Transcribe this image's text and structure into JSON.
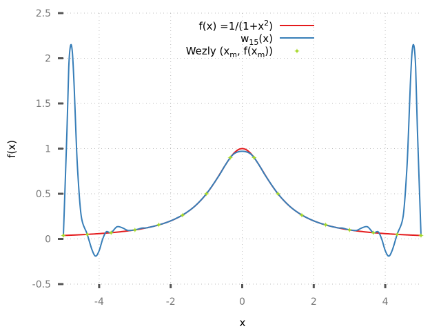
{
  "chart_data": {
    "type": "line",
    "xlabel": "x",
    "ylabel": "f(x)",
    "xlim": [
      -5,
      5
    ],
    "ylim": [
      -0.5,
      2.5
    ],
    "grid": true,
    "legend_position": "top-right",
    "x_ticks": [
      -4,
      -2,
      0,
      2,
      4
    ],
    "x_tick_labels": [
      "-4",
      "-2",
      "0",
      "2",
      "4"
    ],
    "y_ticks": [
      -0.5,
      0,
      0.5,
      1,
      1.5,
      2,
      2.5
    ],
    "y_tick_labels": [
      "-0.5",
      "0",
      "0.5",
      "1",
      "1.5",
      "2",
      "2.5"
    ],
    "series": [
      {
        "name": "f(x) =1/(1+x^2)",
        "legend_parts": {
          "pre": "f(x) =1/(1+x",
          "sup": "2",
          "post": ")"
        },
        "color": "#e41a1c",
        "kind": "line",
        "function": "1/(1+x^2)",
        "x_range": [
          -5,
          5
        ]
      },
      {
        "name": "w15(x)",
        "legend_parts": {
          "pre": "w",
          "sub": "15",
          "post": "(x)"
        },
        "color": "#377eb8",
        "kind": "line",
        "x": [
          -5,
          -4.9,
          -4.85,
          -4.8,
          -4.75,
          -4.7,
          -4.65,
          -4.6,
          -4.5,
          -4.333,
          -4.2,
          -4.1,
          -4.0,
          -3.9,
          -3.8,
          -3.667,
          -3.5,
          -3.333,
          -3.2,
          -3.0,
          -2.8,
          -2.667,
          -2.333,
          -2.0,
          -1.667,
          -1.333,
          -1.0,
          -0.667,
          -0.5,
          -0.333,
          -0.2,
          0,
          0.2,
          0.333,
          0.5,
          0.667,
          1.0,
          1.333,
          1.667,
          2.0,
          2.333,
          2.667,
          2.8,
          3.0,
          3.2,
          3.333,
          3.5,
          3.667,
          3.8,
          3.9,
          4.0,
          4.1,
          4.2,
          4.333,
          4.5,
          4.6,
          4.65,
          4.7,
          4.75,
          4.8,
          4.85,
          4.9,
          5
        ],
        "y": [
          0.038,
          1.2,
          1.9,
          2.14,
          2.07,
          1.7,
          1.18,
          0.75,
          0.25,
          0.051,
          -0.12,
          -0.19,
          -0.13,
          0.0,
          0.08,
          0.069,
          0.135,
          0.12,
          0.095,
          0.1,
          0.12,
          0.123,
          0.155,
          0.2,
          0.265,
          0.36,
          0.5,
          0.69,
          0.8,
          0.9,
          0.95,
          0.97,
          0.95,
          0.9,
          0.8,
          0.69,
          0.5,
          0.36,
          0.265,
          0.2,
          0.155,
          0.123,
          0.12,
          0.1,
          0.095,
          0.12,
          0.135,
          0.069,
          0.08,
          0.0,
          -0.13,
          -0.19,
          -0.12,
          0.051,
          0.25,
          0.75,
          1.18,
          1.7,
          2.07,
          2.14,
          1.9,
          1.2,
          0.038
        ]
      },
      {
        "name": "Wezly (xm, f(xm))",
        "legend_parts": {
          "pre": "Wezly (x",
          "sub": "m",
          "mid": ", f(x",
          "sub2": "m",
          "post": "))"
        },
        "color": "#a6d82a",
        "kind": "points",
        "x": [
          -5,
          -4.333,
          -3.667,
          -3.0,
          -2.333,
          -1.667,
          -1.0,
          -0.333,
          0.333,
          1.0,
          1.667,
          2.333,
          3.0,
          3.667,
          4.333,
          5
        ],
        "y": [
          0.038,
          0.051,
          0.069,
          0.1,
          0.155,
          0.265,
          0.5,
          0.9,
          0.9,
          0.5,
          0.265,
          0.155,
          0.1,
          0.069,
          0.051,
          0.038
        ]
      }
    ]
  }
}
